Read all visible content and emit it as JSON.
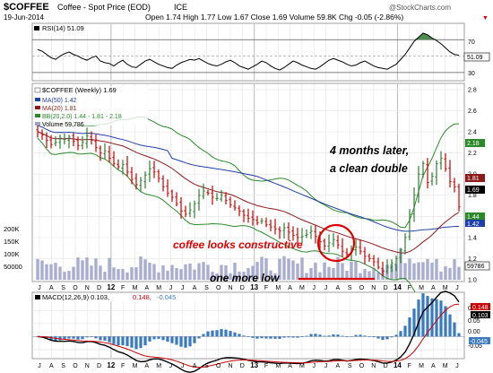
{
  "header": {
    "symbol": "$COFFEE",
    "name": "Coffee - Spot Price (EOD)",
    "exchange": "ICE",
    "date": "19-Jun-2014",
    "quote": "Open 1.74  High 1.77  Low 1.67  Close 1.69  Volume 59.8K  Chg -0.05 (-2.86%)",
    "down_arrow": "▼",
    "watermark": "@StockCharts.com"
  },
  "colors": {
    "price_up": "#2e7d32",
    "price_down": "#cc0000",
    "ma50": "#1f3fa8",
    "ma20": "#8b1a1a",
    "bollinger": "#2a8a2a",
    "volume": "#9aa0c8",
    "rsi_line": "#000000",
    "rsi_overbought_fill": "#4f8a4f",
    "rsi_oversold_fill": "#8a4f4f",
    "macd_line": "#000000",
    "signal_line": "#cc0000",
    "histogram": "#3a7ac0",
    "annotation_red": "#dd0000"
  },
  "rsi_panel": {
    "legend": "RSI(14) 51.09",
    "ticks": [
      "70",
      "50",
      "30"
    ],
    "current": "51.09"
  },
  "price_panel": {
    "legend_title": "$COFFEE (Weekly) 1.69",
    "legend_ma50": "MA(50) 1.42",
    "legend_ma20": "MA(20) 1.81",
    "legend_bb": "BB(20,2.0) 1.44 - 1.81 - 2.18",
    "legend_volume": "Volume 59,786",
    "price_ticks": [
      "2.8",
      "2.6",
      "2.4",
      "2.2",
      "2.0",
      "1.8",
      "1.6",
      "1.4",
      "1.2",
      "1.0"
    ],
    "volume_ticks": [
      "200K",
      "150K",
      "100K",
      "50000"
    ],
    "value_tags": {
      "bb_upper": "2.18",
      "ma20": "1.81",
      "close": "1.69",
      "bb_lower": "1.44",
      "ma50": "1.42",
      "volume": "59786"
    }
  },
  "macd_panel": {
    "legend_prefix": "MACD(12,26,9) 0.103,",
    "legend_signal": "0.148,",
    "legend_hist": "-0.045",
    "ticks": [
      "0.10",
      "0.05",
      "0.00",
      "-0.05"
    ],
    "value_tags": {
      "signal": "0.148",
      "macd": "0.103",
      "hist": "-0.045"
    }
  },
  "x_axis_labels": [
    "J",
    "A",
    "S",
    "O",
    "N",
    "D",
    "12",
    "F",
    "M",
    "A",
    "M",
    "J",
    "J",
    "A",
    "S",
    "O",
    "N",
    "D",
    "13",
    "F",
    "M",
    "A",
    "M",
    "J",
    "J",
    "A",
    "S",
    "O",
    "N",
    "D",
    "14",
    "F",
    "M",
    "A",
    "M",
    "J"
  ],
  "annotations": {
    "double_line1": "4 months later,",
    "double_line2": "a clean double",
    "constructive": "coffee looks constructive",
    "one_more_low": "one more low"
  },
  "chart_data": [
    {
      "type": "line",
      "panel": "RSI(14)",
      "series": [
        {
          "name": "RSI(14)",
          "values": [
            58,
            56,
            52,
            48,
            46,
            50,
            53,
            55,
            52,
            50,
            47,
            45,
            48,
            50,
            44,
            42,
            41,
            38,
            42,
            45,
            40,
            37,
            36,
            40,
            44,
            46,
            43,
            40,
            38,
            36,
            35,
            39,
            42,
            44,
            46,
            45,
            47,
            44,
            41,
            39,
            38,
            40,
            43,
            45,
            42,
            38,
            36,
            34,
            37,
            40,
            44,
            42,
            38,
            35,
            33,
            36,
            40,
            44,
            42,
            39,
            37,
            35,
            34,
            37,
            41,
            45,
            47,
            45,
            43,
            40,
            38,
            39,
            42,
            44,
            41,
            38,
            36,
            35,
            34,
            37,
            40,
            46,
            52,
            60,
            68,
            73,
            78,
            76,
            72,
            69,
            65,
            60,
            55,
            52,
            51
          ]
        }
      ],
      "ylim": [
        20,
        90
      ],
      "reference_lines": [
        70,
        50,
        30
      ]
    },
    {
      "type": "ohlc",
      "panel": "price",
      "title": "$COFFEE (Weekly) 1.69",
      "period": "Jul 2011 - Jun 2014",
      "close": [
        2.4,
        2.37,
        2.32,
        2.28,
        2.3,
        2.34,
        2.33,
        2.35,
        2.31,
        2.27,
        2.3,
        2.36,
        2.32,
        2.25,
        2.2,
        2.22,
        2.15,
        2.1,
        2.07,
        2.09,
        2.02,
        1.95,
        1.9,
        1.94,
        1.99,
        2.05,
        2.02,
        1.96,
        1.88,
        1.82,
        1.78,
        1.72,
        1.65,
        1.62,
        1.66,
        1.72,
        1.8,
        1.84,
        1.82,
        1.78,
        1.77,
        1.8,
        1.75,
        1.71,
        1.68,
        1.65,
        1.61,
        1.58,
        1.57,
        1.54,
        1.56,
        1.52,
        1.5,
        1.48,
        1.46,
        1.49,
        1.45,
        1.42,
        1.4,
        1.41,
        1.43,
        1.46,
        1.41,
        1.36,
        1.32,
        1.35,
        1.38,
        1.33,
        1.27,
        1.24,
        1.29,
        1.31,
        1.27,
        1.22,
        1.2,
        1.17,
        1.12,
        1.08,
        1.12,
        1.16,
        1.2,
        1.28,
        1.4,
        1.62,
        1.8,
        2.0,
        2.1,
        1.92,
        1.98,
        2.1,
        2.15,
        2.05,
        1.93,
        1.88,
        1.69
      ],
      "ylim": [
        1.0,
        2.85
      ]
    },
    {
      "type": "line",
      "panel": "price",
      "series": [
        {
          "name": "MA(50)",
          "last": 1.42
        },
        {
          "name": "MA(20)",
          "last": 1.81
        },
        {
          "name": "BB(20,2.0)",
          "lower": 1.44,
          "middle": 1.81,
          "upper": 2.18
        }
      ]
    },
    {
      "type": "bar",
      "panel": "volume",
      "series": [
        {
          "name": "Volume",
          "last": 59786
        }
      ],
      "ylim": [
        0,
        250000
      ]
    },
    {
      "type": "line",
      "panel": "MACD(12,26,9)",
      "series": [
        {
          "name": "MACD(12,26,9)",
          "last": 0.103
        },
        {
          "name": "Signal",
          "last": 0.148
        },
        {
          "name": "Histogram",
          "last": -0.045
        }
      ],
      "ylim": [
        -0.085,
        0.17
      ]
    }
  ]
}
